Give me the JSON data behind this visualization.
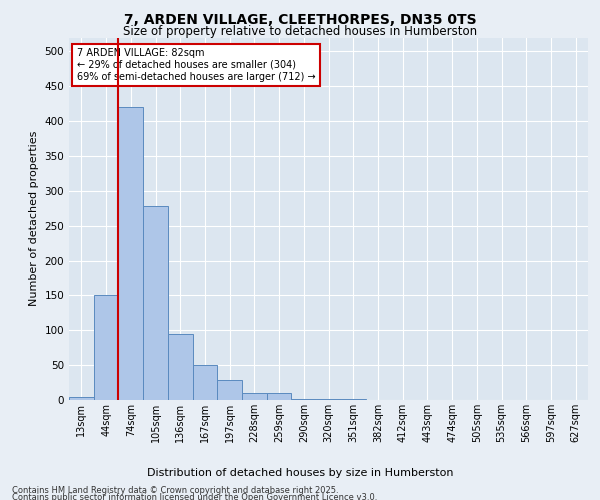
{
  "title_line1": "7, ARDEN VILLAGE, CLEETHORPES, DN35 0TS",
  "title_line2": "Size of property relative to detached houses in Humberston",
  "xlabel": "Distribution of detached houses by size in Humberston",
  "ylabel": "Number of detached properties",
  "bins": [
    "13sqm",
    "44sqm",
    "74sqm",
    "105sqm",
    "136sqm",
    "167sqm",
    "197sqm",
    "228sqm",
    "259sqm",
    "290sqm",
    "320sqm",
    "351sqm",
    "382sqm",
    "412sqm",
    "443sqm",
    "474sqm",
    "505sqm",
    "535sqm",
    "566sqm",
    "597sqm",
    "627sqm"
  ],
  "bar_heights": [
    5,
    150,
    420,
    278,
    95,
    50,
    28,
    10,
    10,
    2,
    1,
    1,
    0,
    0,
    0,
    0,
    0,
    0,
    0,
    0,
    0
  ],
  "bar_color": "#aec6e8",
  "bar_edge_color": "#5a8abf",
  "red_line_bin_index": 2,
  "annotation_text": "7 ARDEN VILLAGE: 82sqm\n← 29% of detached houses are smaller (304)\n69% of semi-detached houses are larger (712) →",
  "annotation_box_color": "#ffffff",
  "annotation_box_edge": "#cc0000",
  "red_line_color": "#cc0000",
  "background_color": "#e8eef5",
  "plot_bg_color": "#dce6f0",
  "grid_color": "#ffffff",
  "ylim": [
    0,
    520
  ],
  "yticks": [
    0,
    50,
    100,
    150,
    200,
    250,
    300,
    350,
    400,
    450,
    500
  ],
  "footer_line1": "Contains HM Land Registry data © Crown copyright and database right 2025.",
  "footer_line2": "Contains public sector information licensed under the Open Government Licence v3.0."
}
